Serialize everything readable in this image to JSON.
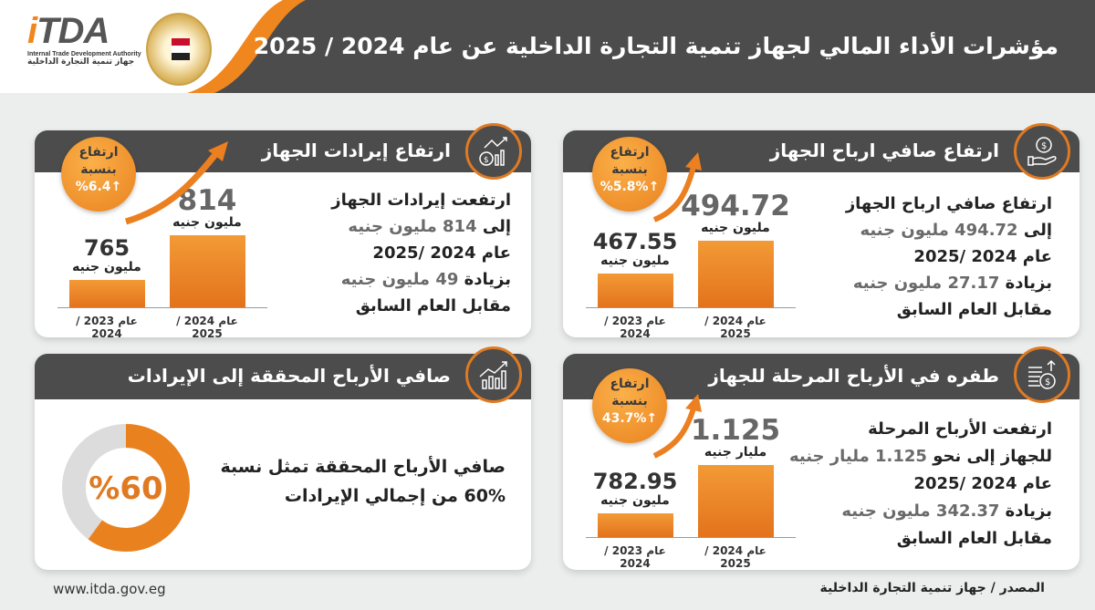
{
  "header": {
    "title": "مؤشرات الأداء المالي لجهاز تنمية التجارة الداخلية عن عام 2024 / 2025",
    "logo": {
      "mark_i": "i",
      "mark_rest": "TDA",
      "en": "Internal Trade Development Authority",
      "ar": "جهاز تنمية التجارة الداخلية"
    },
    "colors": {
      "band": "#4c4c4c",
      "accent": "#f0861e"
    }
  },
  "cards": {
    "revenue": {
      "title": "ارتفاع إيرادات الجهاز",
      "icon": "revenue-growth-icon",
      "badge": {
        "l1": "ارتفاع",
        "l2": "بنسبة",
        "pct": "↑%6.4"
      },
      "bars": [
        {
          "value": "765",
          "unit": "مليون جنيه",
          "year": "عام 2023 / 2024"
        },
        {
          "value": "814",
          "unit": "مليون جنيه",
          "year": "عام 2024 / 2025"
        }
      ],
      "lines": [
        {
          "a": "ارتفعت إيرادات الجهاز",
          "b": ""
        },
        {
          "a": "إلى ",
          "b": "814 مليون جنيه"
        },
        {
          "a": "عام 2024 /2025",
          "b": ""
        },
        {
          "a": "بزيادة ",
          "b": "49 مليون جنيه"
        },
        {
          "a": "مقابل العام السابق",
          "b": ""
        }
      ]
    },
    "net_profit": {
      "title": "ارتفاع صافي ارباح الجهاز",
      "icon": "hand-coin-icon",
      "badge": {
        "l1": "ارتفاع",
        "l2": "بنسبة",
        "pct": "↑%5.8%"
      },
      "bars": [
        {
          "value": "467.55",
          "unit": "مليون جنيه",
          "year": "عام 2023 / 2024"
        },
        {
          "value": "494.72",
          "unit": "مليون جنيه",
          "year": "عام 2024 / 2025"
        }
      ],
      "lines": [
        {
          "a": "ارتفاع صافي ارباح الجهاز",
          "b": ""
        },
        {
          "a": "إلى ",
          "b": "494.72 مليون جنيه"
        },
        {
          "a": "عام 2024 /2025",
          "b": ""
        },
        {
          "a": "بزيادة ",
          "b": "27.17 مليون جنيه"
        },
        {
          "a": "مقابل العام السابق",
          "b": ""
        }
      ]
    },
    "ratio": {
      "title": "صافي الأرباح المحققة إلى الإيرادات",
      "icon": "line-chart-icon",
      "donut_label": "%60",
      "line1": "صافي الأرباح المحققة تمثل نسبة",
      "line2": "60% من إجمالي الإيرادات"
    },
    "retained": {
      "title": "طفره في الأرباح المرحلة للجهاز",
      "icon": "coin-stack-icon",
      "badge": {
        "l1": "ارتفاع",
        "l2": "بنسبة",
        "pct": "↑43.7%"
      },
      "bars": [
        {
          "value": "782.95",
          "unit": "مليون جنيه",
          "year": "عام 2023 / 2024"
        },
        {
          "value": "1.125",
          "unit": "مليار جنيه",
          "year": "عام 2024 / 2025"
        }
      ],
      "lines": [
        {
          "a": "ارتفعت الأرباح المرحلة",
          "b": ""
        },
        {
          "a": "للجهاز إلى نحو ",
          "b": "1.125 مليار جنيه"
        },
        {
          "a": "عام 2024 /2025",
          "b": ""
        },
        {
          "a": "بزيادة ",
          "b": "342.37 مليون جنيه"
        },
        {
          "a": "مقابل العام السابق",
          "b": ""
        }
      ]
    }
  },
  "footer": {
    "url": "www.itda.gov.eg",
    "source": "المصدر / جهاز تنمية التجارة الداخلية"
  },
  "chart_data": [
    {
      "type": "bar",
      "title": "ارتفاع إيرادات الجهاز",
      "categories": [
        "عام 2023 / 2024",
        "عام 2024 / 2025"
      ],
      "values": [
        765,
        814
      ],
      "unit": "مليون جنيه",
      "ylim": [
        735,
        815
      ]
    },
    {
      "type": "bar",
      "title": "ارتفاع صافي ارباح الجهاز",
      "categories": [
        "عام 2023 / 2024",
        "عام 2024 / 2025"
      ],
      "values": [
        467.55,
        494.72
      ],
      "unit": "مليون جنيه",
      "ylim": [
        440,
        500
      ]
    },
    {
      "type": "bar",
      "title": "طفره في الأرباح المرحلة للجهاز",
      "categories": [
        "عام 2023 / 2024",
        "عام 2024 / 2025"
      ],
      "values": [
        782.95,
        1125
      ],
      "unit": "مليون جنيه",
      "ylim": [
        620,
        1130
      ]
    },
    {
      "type": "pie",
      "title": "صافي الأرباح المحققة إلى الإيرادات",
      "values": [
        60,
        40
      ],
      "colors": [
        "#e9821e",
        "#dcdcdc"
      ]
    }
  ]
}
